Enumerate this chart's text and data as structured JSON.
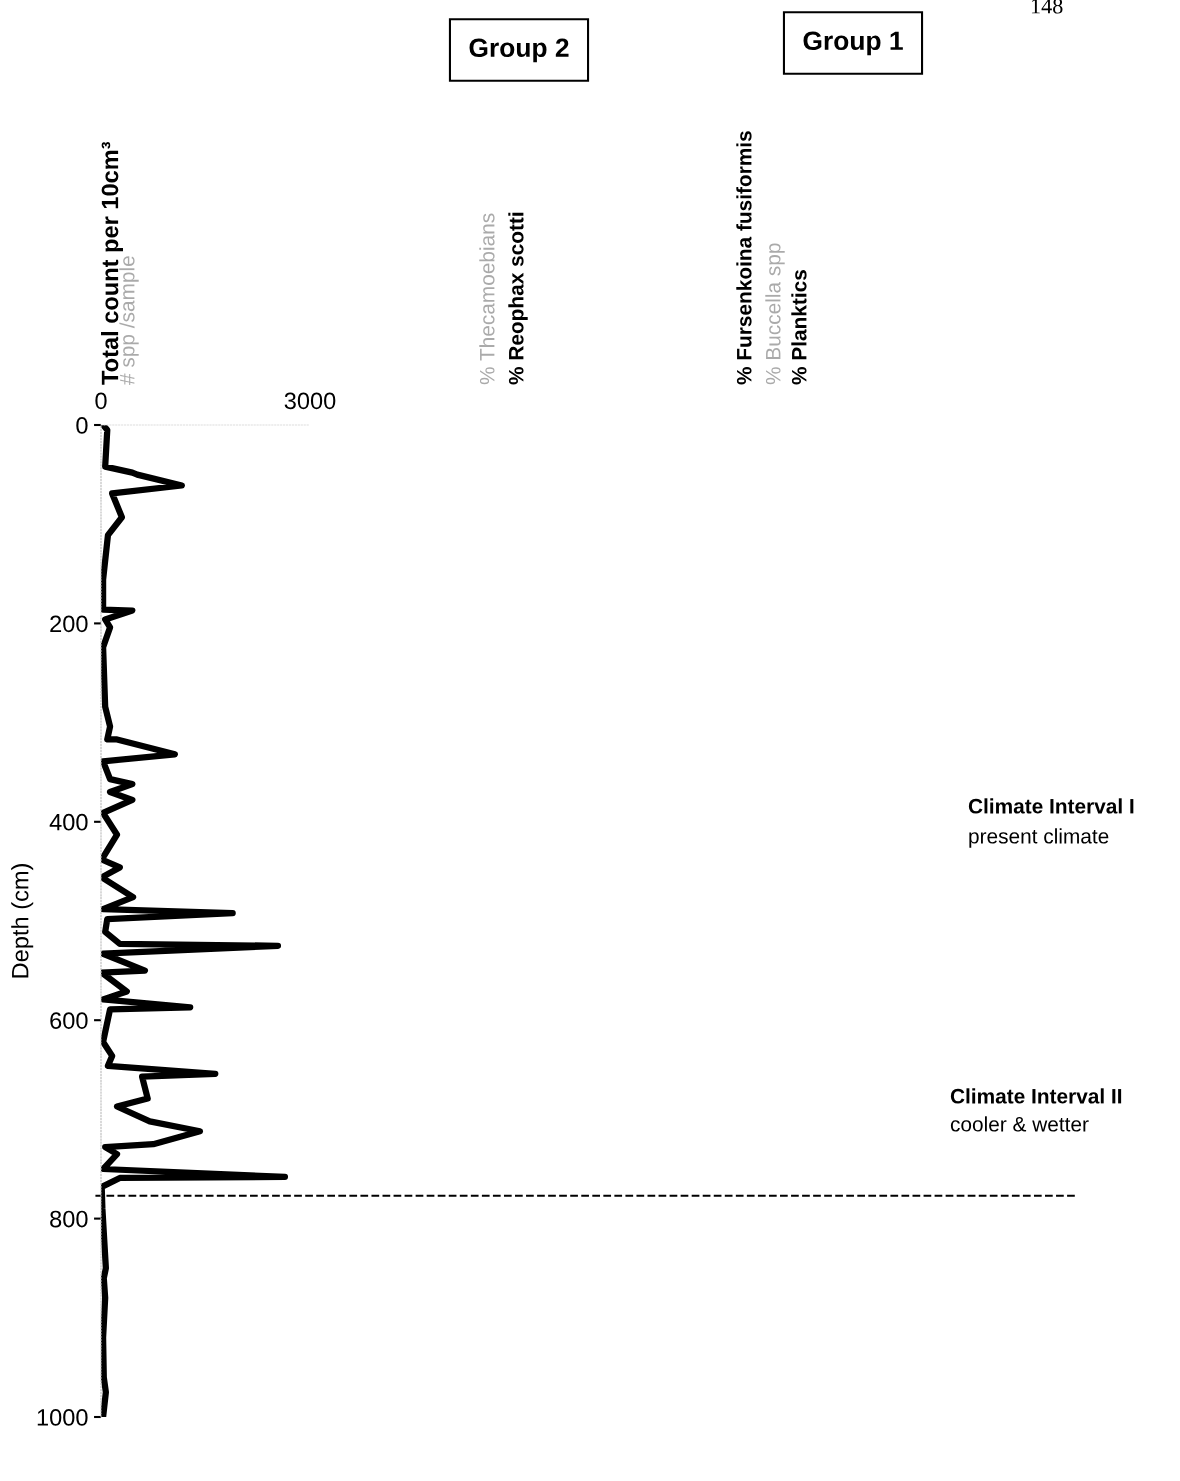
{
  "chart_data": {
    "type": "line",
    "title": "Total count per 10cm³",
    "ylabel": "Depth (cm)",
    "orientation": "horizontal",
    "series": [
      {
        "color": "#000000",
        "values": [
          30,
          90,
          60,
          450,
          520,
          1160,
          160,
          300,
          100,
          30,
          30,
          450,
          60,
          130,
          30,
          60,
          130,
          90,
          230,
          1060,
          30,
          130,
          450,
          130,
          450,
          30,
          230,
          10,
          270,
          10,
          460,
          30,
          1890,
          90,
          60,
          270,
          2540,
          30,
          630,
          10,
          370,
          30,
          1280,
          130,
          30,
          160,
          100,
          1640,
          590,
          670,
          230,
          700,
          1420,
          750,
          60,
          230,
          30,
          2640,
          270,
          10,
          20,
          70,
          40,
          60,
          30,
          40,
          70,
          30
        ],
        "x": [
          0,
          5,
          42,
          48,
          50,
          61,
          69,
          93,
          111,
          156,
          186,
          187,
          196,
          204,
          224,
          284,
          304,
          317,
          317,
          332,
          339,
          357,
          362,
          370,
          378,
          391,
          413,
          438,
          446,
          456,
          476,
          488,
          492,
          498,
          511,
          523,
          525,
          533,
          550,
          552,
          571,
          579,
          587,
          589,
          622,
          636,
          646,
          654,
          657,
          679,
          687,
          702,
          712,
          725,
          728,
          735,
          750,
          758,
          759,
          768,
          790,
          850,
          860,
          880,
          920,
          960,
          975,
          1000
        ]
      }
    ],
    "xlim": [
      0,
      3000
    ],
    "xticks": [
      0,
      3000
    ],
    "ylim": [
      1000,
      0
    ],
    "yticks": [
      0,
      200,
      400,
      600,
      800,
      1000
    ],
    "grid": false,
    "legend": false,
    "marker": "none",
    "line_style": "solid",
    "ref_lines": [
      {
        "axis": "y",
        "value": 777,
        "color": "#000000",
        "line_style": "dashed"
      }
    ],
    "annotations": [
      "# spp /sample",
      "Group 2",
      "Group 1",
      "% Thecamoebians",
      "% Reophax scotti",
      "% Fursenkoina fusiformis",
      "% Buccella spp",
      "% Planktics",
      "Climate Interval I",
      "present climate",
      "Climate Interval II",
      "cooler & wetter",
      "148"
    ]
  }
}
